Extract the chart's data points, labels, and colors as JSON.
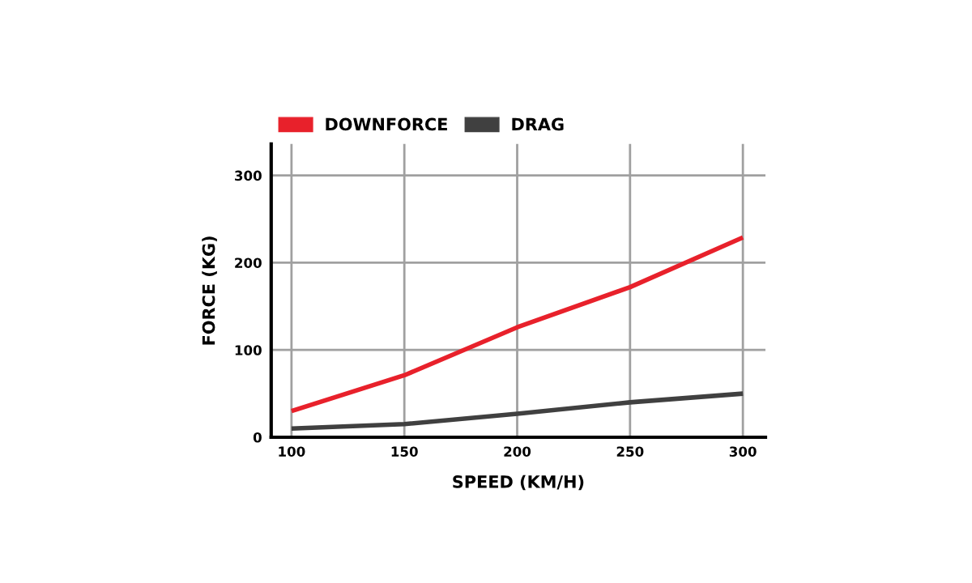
{
  "chart_data": {
    "type": "line",
    "xlabel": "SPEED (KM/H)",
    "ylabel": "FORCE (KG)",
    "x": [
      100,
      150,
      200,
      250,
      300
    ],
    "series": [
      {
        "name": "DOWNFORCE",
        "color": "#e8212b",
        "values": [
          30,
          71,
          126,
          172,
          229
        ]
      },
      {
        "name": "DRAG",
        "color": "#404040",
        "values": [
          10,
          15,
          27,
          40,
          50
        ]
      }
    ],
    "xlim": [
      91,
      310
    ],
    "ylim": [
      0,
      336
    ],
    "xticks": [
      100,
      150,
      200,
      250,
      300
    ],
    "yticks": [
      0,
      100,
      200,
      300
    ],
    "grid": true,
    "legend": "top left",
    "marker": "none",
    "line_style": "solid"
  }
}
